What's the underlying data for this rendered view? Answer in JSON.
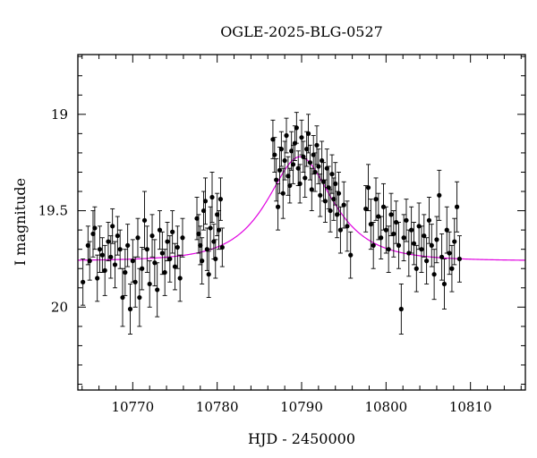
{
  "chart_data": {
    "type": "scatter",
    "title": "OGLE-2025-BLG-0527",
    "xlabel": "HJD - 2450000",
    "ylabel": "I magnitude",
    "xlim": [
      10763.5,
      10816.5
    ],
    "ylim": [
      20.43,
      18.69
    ],
    "y_inverted": true,
    "x_major_ticks": [
      10770,
      10780,
      10790,
      10800,
      10810
    ],
    "y_major_ticks": [
      19,
      19.5,
      20
    ],
    "x_minor_step": 2,
    "y_minor_step": 0.1,
    "grid": false,
    "colors": {
      "points": "#000000",
      "model": "#e000e0"
    },
    "model": {
      "name": "",
      "type": "paczynski",
      "baseline_mag": 19.76,
      "peak_mag": 19.22,
      "t0": 10789.8,
      "tE": 5.5
    },
    "series": [
      {
        "name": "",
        "points": [
          [
            10764.1,
            19.87,
            0.12
          ],
          [
            10764.7,
            19.68,
            0.1
          ],
          [
            10764.9,
            19.76,
            0.1
          ],
          [
            10765.3,
            19.62,
            0.12
          ],
          [
            10765.5,
            19.59,
            0.11
          ],
          [
            10765.8,
            19.85,
            0.12
          ],
          [
            10766.1,
            19.7,
            0.12
          ],
          [
            10766.4,
            19.73,
            0.09
          ],
          [
            10766.7,
            19.81,
            0.13
          ],
          [
            10767.1,
            19.66,
            0.1
          ],
          [
            10767.4,
            19.74,
            0.11
          ],
          [
            10767.6,
            19.58,
            0.09
          ],
          [
            10767.9,
            19.78,
            0.12
          ],
          [
            10768.2,
            19.63,
            0.1
          ],
          [
            10768.5,
            19.7,
            0.1
          ],
          [
            10768.8,
            19.95,
            0.15
          ],
          [
            10769.1,
            19.82,
            0.12
          ],
          [
            10769.4,
            19.68,
            0.11
          ],
          [
            10769.7,
            20.01,
            0.13
          ],
          [
            10770.0,
            19.76,
            0.11
          ],
          [
            10770.3,
            19.87,
            0.13
          ],
          [
            10770.6,
            19.64,
            0.1
          ],
          [
            10770.8,
            19.95,
            0.15
          ],
          [
            10771.1,
            19.8,
            0.11
          ],
          [
            10771.4,
            19.55,
            0.15
          ],
          [
            10771.7,
            19.7,
            0.12
          ],
          [
            10772.0,
            19.88,
            0.12
          ],
          [
            10772.3,
            19.63,
            0.11
          ],
          [
            10772.6,
            19.77,
            0.12
          ],
          [
            10772.9,
            19.91,
            0.14
          ],
          [
            10773.2,
            19.6,
            0.1
          ],
          [
            10773.5,
            19.72,
            0.11
          ],
          [
            10773.8,
            19.82,
            0.12
          ],
          [
            10774.1,
            19.66,
            0.1
          ],
          [
            10774.4,
            19.75,
            0.12
          ],
          [
            10774.7,
            19.61,
            0.11
          ],
          [
            10775.0,
            19.79,
            0.12
          ],
          [
            10775.3,
            19.69,
            0.11
          ],
          [
            10775.6,
            19.85,
            0.12
          ],
          [
            10775.9,
            19.64,
            0.1
          ],
          [
            10777.6,
            19.54,
            0.11
          ],
          [
            10777.8,
            19.62,
            0.1
          ],
          [
            10778.0,
            19.68,
            0.1
          ],
          [
            10778.2,
            19.76,
            0.12
          ],
          [
            10778.4,
            19.5,
            0.1
          ],
          [
            10778.6,
            19.45,
            0.12
          ],
          [
            10778.8,
            19.7,
            0.11
          ],
          [
            10779.0,
            19.83,
            0.12
          ],
          [
            10779.2,
            19.59,
            0.11
          ],
          [
            10779.4,
            19.43,
            0.13
          ],
          [
            10779.6,
            19.66,
            0.09
          ],
          [
            10779.8,
            19.75,
            0.1
          ],
          [
            10780.0,
            19.52,
            0.11
          ],
          [
            10780.2,
            19.6,
            0.1
          ],
          [
            10780.4,
            19.44,
            0.11
          ],
          [
            10780.6,
            19.69,
            0.1
          ],
          [
            10786.6,
            19.13,
            0.1
          ],
          [
            10786.8,
            19.21,
            0.09
          ],
          [
            10787.0,
            19.34,
            0.11
          ],
          [
            10787.2,
            19.48,
            0.12
          ],
          [
            10787.4,
            19.29,
            0.12
          ],
          [
            10787.6,
            19.18,
            0.09
          ],
          [
            10787.8,
            19.41,
            0.13
          ],
          [
            10788.0,
            19.24,
            0.1
          ],
          [
            10788.2,
            19.11,
            0.09
          ],
          [
            10788.4,
            19.32,
            0.1
          ],
          [
            10788.6,
            19.37,
            0.09
          ],
          [
            10788.8,
            19.19,
            0.1
          ],
          [
            10789.0,
            19.26,
            0.1
          ],
          [
            10789.2,
            19.15,
            0.09
          ],
          [
            10789.4,
            19.07,
            0.08
          ],
          [
            10789.6,
            19.28,
            0.09
          ],
          [
            10789.8,
            19.36,
            0.1
          ],
          [
            10790.0,
            19.12,
            0.09
          ],
          [
            10790.2,
            19.22,
            0.08
          ],
          [
            10790.4,
            19.33,
            0.1
          ],
          [
            10790.6,
            19.18,
            0.09
          ],
          [
            10790.8,
            19.1,
            0.1
          ],
          [
            10791.0,
            19.25,
            0.09
          ],
          [
            10791.2,
            19.39,
            0.11
          ],
          [
            10791.4,
            19.21,
            0.1
          ],
          [
            10791.6,
            19.3,
            0.1
          ],
          [
            10791.8,
            19.16,
            0.1
          ],
          [
            10792.0,
            19.27,
            0.09
          ],
          [
            10792.2,
            19.42,
            0.11
          ],
          [
            10792.4,
            19.24,
            0.1
          ],
          [
            10792.6,
            19.35,
            0.1
          ],
          [
            10792.8,
            19.45,
            0.11
          ],
          [
            10793.0,
            19.28,
            0.1
          ],
          [
            10793.2,
            19.38,
            0.11
          ],
          [
            10793.4,
            19.5,
            0.11
          ],
          [
            10793.6,
            19.31,
            0.1
          ],
          [
            10793.8,
            19.44,
            0.11
          ],
          [
            10794.0,
            19.36,
            0.11
          ],
          [
            10794.2,
            19.52,
            0.12
          ],
          [
            10794.4,
            19.41,
            0.11
          ],
          [
            10794.6,
            19.6,
            0.12
          ],
          [
            10795.0,
            19.47,
            0.12
          ],
          [
            10795.4,
            19.58,
            0.13
          ],
          [
            10795.8,
            19.73,
            0.12
          ],
          [
            10797.6,
            19.49,
            0.12
          ],
          [
            10797.9,
            19.38,
            0.12
          ],
          [
            10798.2,
            19.57,
            0.13
          ],
          [
            10798.5,
            19.68,
            0.12
          ],
          [
            10798.8,
            19.44,
            0.11
          ],
          [
            10799.1,
            19.53,
            0.12
          ],
          [
            10799.4,
            19.64,
            0.11
          ],
          [
            10799.7,
            19.48,
            0.12
          ],
          [
            10800.0,
            19.6,
            0.12
          ],
          [
            10800.3,
            19.7,
            0.12
          ],
          [
            10800.6,
            19.52,
            0.11
          ],
          [
            10800.9,
            19.62,
            0.12
          ],
          [
            10801.2,
            19.56,
            0.11
          ],
          [
            10801.5,
            19.68,
            0.12
          ],
          [
            10801.8,
            20.01,
            0.13
          ],
          [
            10802.1,
            19.64,
            0.12
          ],
          [
            10802.4,
            19.55,
            0.11
          ],
          [
            10802.7,
            19.72,
            0.12
          ],
          [
            10803.0,
            19.6,
            0.12
          ],
          [
            10803.3,
            19.67,
            0.11
          ],
          [
            10803.6,
            19.8,
            0.12
          ],
          [
            10803.9,
            19.58,
            0.12
          ],
          [
            10804.2,
            19.7,
            0.12
          ],
          [
            10804.5,
            19.63,
            0.11
          ],
          [
            10804.8,
            19.76,
            0.12
          ],
          [
            10805.1,
            19.55,
            0.12
          ],
          [
            10805.4,
            19.68,
            0.11
          ],
          [
            10805.7,
            19.83,
            0.13
          ],
          [
            10806.0,
            19.65,
            0.12
          ],
          [
            10806.3,
            19.42,
            0.13
          ],
          [
            10806.6,
            19.74,
            0.12
          ],
          [
            10806.9,
            19.88,
            0.13
          ],
          [
            10807.2,
            19.6,
            0.12
          ],
          [
            10807.5,
            19.72,
            0.11
          ],
          [
            10807.8,
            19.8,
            0.12
          ],
          [
            10808.1,
            19.66,
            0.12
          ],
          [
            10808.4,
            19.48,
            0.13
          ],
          [
            10808.7,
            19.75,
            0.12
          ]
        ]
      }
    ]
  }
}
